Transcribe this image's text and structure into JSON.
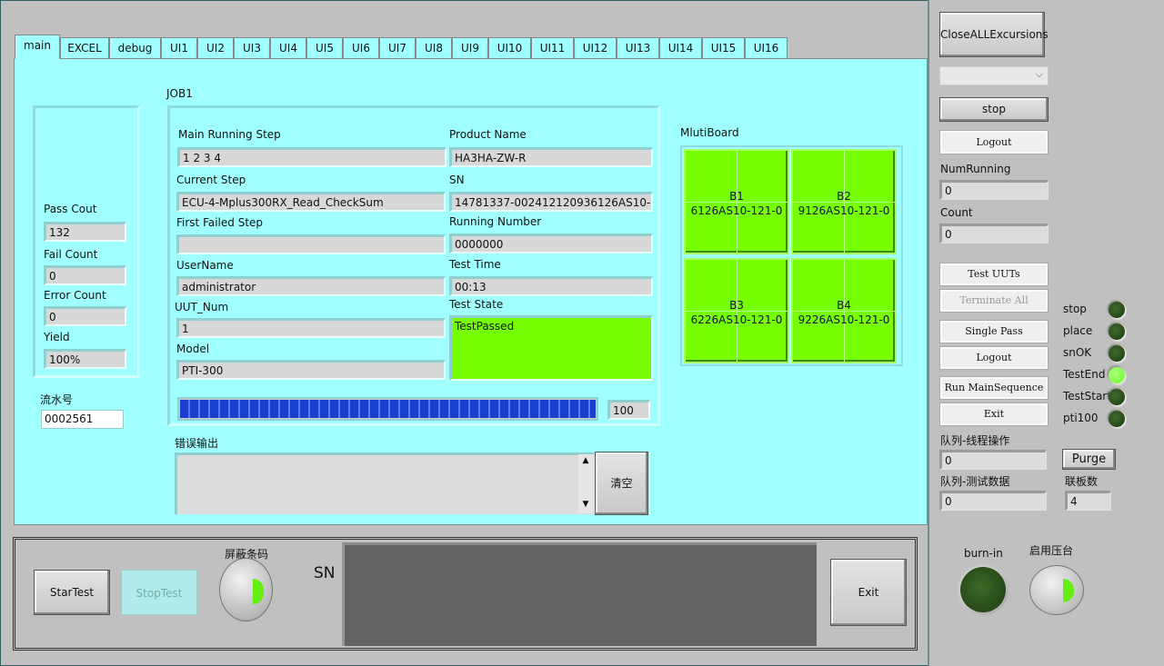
{
  "tabs": [
    "main",
    "EXCEL",
    "debug",
    "UI1",
    "UI2",
    "UI3",
    "UI4",
    "UI5",
    "UI6",
    "UI7",
    "UI8",
    "UI9",
    "UI10",
    "UI11",
    "UI12",
    "UI13",
    "UI14",
    "UI15",
    "UI16"
  ],
  "stats": {
    "pass_label": "Pass Cout",
    "pass": "132",
    "fail_label": "Fail Count",
    "fail": "0",
    "error_label": "Error Count",
    "error": "0",
    "yield_label": "Yield",
    "yield": "100%",
    "serial_label": "流水号",
    "serial": "0002561"
  },
  "job": {
    "title": "JOB1",
    "main_step_label": "Main Running Step",
    "main_step": "1 2 3 4",
    "current_step_label": "Current Step",
    "current_step": "ECU-4-Mplus300RX_Read_CheckSum",
    "first_failed_label": "First Failed Step",
    "first_failed": "",
    "username_label": "UserName",
    "username": "administrator",
    "uut_num_label": "UUT_Num",
    "uut_num": "1",
    "model_label": "Model",
    "model": "PTI-300",
    "product_label": "Product Name",
    "product": "HA3HA-ZW-R",
    "sn_label": "SN",
    "sn": "14781337-002412120936126AS10-",
    "running_number_label": "Running Number",
    "running_number": "0000000",
    "test_time_label": "Test Time",
    "test_time": "00:13",
    "test_state_label": "Test State",
    "test_state": "TestPassed",
    "progress_percent": 100,
    "progress_value": "100"
  },
  "error_output": {
    "label": "错误输出",
    "value": "",
    "clear_label": "清空"
  },
  "multiboard": {
    "title": "MlutiBoard",
    "boards": [
      {
        "name": "B1",
        "sn": "6126AS10-121-0"
      },
      {
        "name": "B2",
        "sn": "9126AS10-121-0"
      },
      {
        "name": "B3",
        "sn": "6226AS10-121-0"
      },
      {
        "name": "B4",
        "sn": "9226AS10-121-0"
      }
    ]
  },
  "right": {
    "close_all": "CloseALLExcursions",
    "dropdown": "",
    "stop": "stop",
    "logout1": "Logout",
    "num_running_label": "NumRunning",
    "num_running": "0",
    "count_label": "Count",
    "count": "0",
    "test_uuts": "Test UUTs",
    "terminate_all": "Terminate All",
    "single_pass": "Single Pass",
    "logout2": "Logout",
    "run_main": "Run MainSequence",
    "exit": "Exit",
    "leds": [
      {
        "label": "stop",
        "on": false
      },
      {
        "label": "place",
        "on": false
      },
      {
        "label": "snOK",
        "on": false
      },
      {
        "label": "TestEnd",
        "on": true
      },
      {
        "label": "TestStart",
        "on": false
      },
      {
        "label": "pti100",
        "on": false
      }
    ],
    "queue_thread_label": "队列-线程操作",
    "queue_thread": "0",
    "purge": "Purge",
    "queue_data_label": "队列-测试数据",
    "queue_data": "0",
    "board_count_label": "联板数",
    "board_count": "4",
    "burnin_label": "burn-in",
    "press_label": "启用压台"
  },
  "bottom": {
    "start": "StarTest",
    "stop": "StopTest",
    "mask_label": "屏蔽条码",
    "sn_label": "SN",
    "exit": "Exit"
  },
  "colors": {
    "panel": "#a0ffff",
    "pass": "#76ff03",
    "progress": "#1a3fcf",
    "led_on": "#66ff22",
    "led_off": "#2a4a1a"
  }
}
